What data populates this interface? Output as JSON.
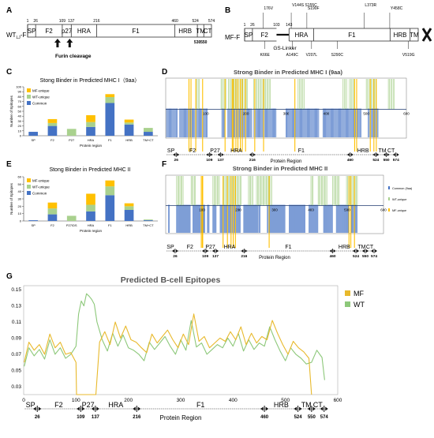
{
  "colors": {
    "common": "#4472C4",
    "wt": "#A9D18E",
    "mf": "#FFC000",
    "wt_line": "#8DC87A",
    "mf_line": "#E8B92C",
    "frame": "#333333"
  },
  "panel_a": {
    "letter": "A",
    "label_main": "WT",
    "label_sub": "LJ",
    "label_suffix": "-F",
    "positions": [
      {
        "text": "1",
        "at": 1
      },
      {
        "text": "26",
        "at": 26
      },
      {
        "text": "109",
        "at": 109
      },
      {
        "text": "137",
        "at": 137
      },
      {
        "text": "216",
        "at": 216
      },
      {
        "text": "460",
        "at": 460
      },
      {
        "text": "524",
        "at": 524
      },
      {
        "text": "574",
        "at": 574
      }
    ],
    "positions_below": [
      {
        "text": "530",
        "at": 530
      },
      {
        "text": "550",
        "at": 550
      }
    ],
    "domains": [
      {
        "name": "SP",
        "from": 1,
        "to": 26
      },
      {
        "name": "F2",
        "from": 26,
        "to": 109
      },
      {
        "name": "p27",
        "from": 109,
        "to": 137
      },
      {
        "name": "HRA",
        "from": 137,
        "to": 216
      },
      {
        "name": "F1",
        "from": 216,
        "to": 460
      },
      {
        "name": "HRB",
        "from": 460,
        "to": 524
      },
      {
        "name": "TM",
        "from": 530,
        "to": 550
      },
      {
        "name": "CT",
        "from": 550,
        "to": 574
      }
    ],
    "furin_label": "Furin cleavage"
  },
  "panel_b": {
    "letter": "B",
    "label": "MF-F",
    "positions": [
      {
        "text": "1",
        "at": 1
      },
      {
        "text": "26",
        "at": 26
      },
      {
        "text": "103",
        "at": 103
      },
      {
        "text": "143",
        "at": 143
      }
    ],
    "domains": [
      {
        "name": "SP",
        "from": 1,
        "to": 26
      },
      {
        "name": "F2",
        "from": 26,
        "to": 103
      },
      {
        "name": "HRA",
        "from": 143,
        "to": 222
      },
      {
        "name": "F1",
        "from": 222,
        "to": 466
      },
      {
        "name": "HRB",
        "from": 466,
        "to": 530
      },
      {
        "name": "TM",
        "from": 530,
        "to": 556
      }
    ],
    "linker_label": "GS-Linker",
    "mutations_above": [
      {
        "text": "176V",
        "at": 60
      },
      {
        "text": "V144S S155C",
        "at": 150
      },
      {
        "text": "S190F",
        "at": 200
      },
      {
        "text": "L373R",
        "at": 383
      },
      {
        "text": "Y458C",
        "at": 465
      }
    ],
    "mutations_below": [
      {
        "text": "K66E",
        "at": 66
      },
      {
        "text": "A149C",
        "at": 153
      },
      {
        "text": "V207L",
        "at": 215
      },
      {
        "text": "S290C",
        "at": 297
      },
      {
        "text": "V519G",
        "at": 525
      }
    ]
  },
  "panel_c": {
    "letter": "C",
    "title": "Stong Binder in Predicted MHC I（9aa）",
    "ylabel": "Number of Epitopes",
    "xlabel": "Protein region",
    "legend": [
      "MF-unique",
      "WT-unique",
      "Common"
    ]
  },
  "panel_e": {
    "letter": "E",
    "title": "Stong Binder in Predicted MHC II",
    "ylabel": "Number of Epitopes",
    "xlabel": "Protein region",
    "legend": [
      "MF-unique",
      "WT-unique",
      "Common"
    ]
  },
  "panel_d": {
    "letter": "D",
    "title": "Strong Binder in Predicted MHC I (9aa)",
    "xlabel": "Protein Region"
  },
  "panel_f": {
    "letter": "F",
    "title": "Strong Binder in Predicted MHC II",
    "xlabel": "Protein Region",
    "legend": [
      "Common (9aa)",
      "WT-unique",
      "MF-unique"
    ]
  },
  "panel_g": {
    "letter": "G",
    "title": "Predicted B-cell Epitopes",
    "xlabel": "Protein Region",
    "legend": [
      "MF",
      "WT"
    ]
  },
  "domain_track": {
    "names": [
      {
        "text": "SP",
        "at": 13
      },
      {
        "text": "F2",
        "at": 67
      },
      {
        "text": "P27",
        "at": 123
      },
      {
        "text": "HRA",
        "at": 176
      },
      {
        "text": "F1",
        "at": 338
      },
      {
        "text": "HRB",
        "at": 492
      },
      {
        "text": "TM",
        "at": 540
      },
      {
        "text": "CT",
        "at": 562
      }
    ],
    "ticks": [
      {
        "text": "26",
        "at": 26
      },
      {
        "text": "109",
        "at": 109
      },
      {
        "text": "137",
        "at": 137
      },
      {
        "text": "216",
        "at": 216
      },
      {
        "text": "460",
        "at": 460
      },
      {
        "text": "524",
        "at": 524
      },
      {
        "text": "550",
        "at": 550
      },
      {
        "text": "574",
        "at": 574
      }
    ]
  },
  "chart_data": [
    {
      "id": "C",
      "type": "bar",
      "stacked": true,
      "title": "Stong Binder in Predicted MHC I（9aa）",
      "xlabel": "Protein region",
      "ylabel": "Number of Epitopes",
      "ylim": [
        0,
        100
      ],
      "yticks": [
        0,
        10,
        20,
        30,
        40,
        50,
        60,
        70,
        80,
        90,
        100
      ],
      "categories": [
        "SP",
        "F2",
        "P27",
        "HRA",
        "F1",
        "HRB",
        "TM+CT"
      ],
      "series": [
        {
          "name": "Common",
          "values": [
            8,
            20,
            0,
            18,
            67,
            23,
            8
          ]
        },
        {
          "name": "WT-unique",
          "values": [
            0,
            6,
            14,
            10,
            12,
            4,
            8
          ]
        },
        {
          "name": "MF-unique",
          "values": [
            0,
            8,
            0,
            14,
            6,
            6,
            0
          ]
        }
      ]
    },
    {
      "id": "E",
      "type": "bar",
      "stacked": true,
      "title": "Stong Binder in Predicted MHC II",
      "xlabel": "Protein region",
      "ylabel": "Number of Epitopes",
      "ylim": [
        0,
        60
      ],
      "yticks": [
        0,
        10,
        20,
        30,
        40,
        50,
        60
      ],
      "categories": [
        "SP",
        "F2",
        "P27/DS",
        "HRA",
        "F1",
        "HRB",
        "TM+CT"
      ],
      "series": [
        {
          "name": "Common",
          "values": [
            1,
            9,
            0,
            13,
            35,
            15,
            1
          ]
        },
        {
          "name": "WT-unique",
          "values": [
            0,
            8,
            7,
            9,
            12,
            5,
            1
          ]
        },
        {
          "name": "MF-unique",
          "values": [
            0,
            8,
            0,
            15,
            8,
            4,
            0
          ]
        }
      ]
    },
    {
      "id": "D",
      "type": "heatmap",
      "title": "Strong Binder in Predicted MHC I (9aa)",
      "xlabel": "Protein Region",
      "xlim": [
        0,
        600
      ],
      "xticks": [
        100,
        200,
        300,
        400,
        500,
        600
      ],
      "common_ranges": [
        [
          2,
          30
        ],
        [
          35,
          105
        ],
        [
          140,
          148
        ],
        [
          155,
          215
        ],
        [
          220,
          275
        ],
        [
          300,
          382
        ],
        [
          392,
          488
        ],
        [
          505,
          530
        ]
      ],
      "wt_ranges": [
        [
          75,
          85
        ],
        [
          138,
          150
        ],
        [
          156,
          205
        ],
        [
          219,
          262
        ],
        [
          330,
          345
        ],
        [
          442,
          452
        ],
        [
          458,
          470
        ],
        [
          500,
          526
        ],
        [
          555,
          570
        ]
      ],
      "mf_positions": [
        58,
        63,
        75,
        92,
        148,
        166,
        169,
        175,
        180,
        186,
        191,
        199,
        222,
        244,
        322,
        471,
        476,
        510,
        519,
        525
      ]
    },
    {
      "id": "F",
      "type": "heatmap",
      "title": "Strong Binder in Predicted MHC II",
      "xlabel": "Protein Region",
      "xlim": [
        0,
        600
      ],
      "xticks": [
        100,
        200,
        300,
        400,
        500,
        600
      ],
      "common_ranges": [
        [
          8,
          12
        ],
        [
          30,
          68
        ],
        [
          75,
          110
        ],
        [
          115,
          120
        ],
        [
          130,
          140
        ],
        [
          150,
          205
        ],
        [
          215,
          255
        ],
        [
          258,
          262
        ],
        [
          280,
          330
        ],
        [
          340,
          386
        ],
        [
          395,
          420
        ],
        [
          435,
          460
        ],
        [
          470,
          505
        ],
        [
          510,
          528
        ]
      ],
      "wt_ranges": [
        [
          30,
          48
        ],
        [
          70,
          82
        ],
        [
          130,
          150
        ],
        [
          160,
          210
        ],
        [
          228,
          240
        ],
        [
          250,
          292
        ],
        [
          400,
          408
        ],
        [
          420,
          445
        ],
        [
          460,
          478
        ],
        [
          498,
          530
        ]
      ],
      "mf_positions": [
        98,
        101,
        102,
        158,
        170,
        180,
        186,
        192,
        285,
        505,
        510,
        520
      ]
    },
    {
      "id": "G",
      "type": "line",
      "title": "Predicted B-cell Epitopes",
      "xlabel": "Protein Region",
      "xlim": [
        0,
        600
      ],
      "ylim": [
        0.02,
        0.155
      ],
      "yticks": [
        0.03,
        0.05,
        0.07,
        0.09,
        0.11,
        0.13,
        0.15
      ],
      "xticks": [
        0,
        100,
        200,
        300,
        400,
        500,
        600
      ],
      "series": [
        {
          "name": "MF",
          "x": [
            1,
            10,
            20,
            30,
            40,
            50,
            60,
            70,
            80,
            90,
            100,
            101,
            138,
            145,
            155,
            165,
            175,
            185,
            195,
            205,
            215,
            225,
            235,
            245,
            255,
            265,
            275,
            285,
            295,
            305,
            315,
            325,
            335,
            345,
            355,
            365,
            375,
            385,
            395,
            405,
            415,
            425,
            435,
            445,
            455,
            465,
            475,
            485,
            495,
            505,
            515,
            525,
            535,
            545,
            550
          ],
          "y": [
            0.06,
            0.085,
            0.075,
            0.082,
            0.07,
            0.095,
            0.078,
            0.085,
            0.07,
            0.072,
            0.06,
            0.02,
            0.02,
            0.085,
            0.098,
            0.082,
            0.11,
            0.09,
            0.105,
            0.088,
            0.085,
            0.078,
            0.072,
            0.095,
            0.084,
            0.092,
            0.1,
            0.088,
            0.078,
            0.095,
            0.082,
            0.12,
            0.086,
            0.092,
            0.078,
            0.084,
            0.09,
            0.086,
            0.098,
            0.088,
            0.104,
            0.082,
            0.096,
            0.084,
            0.092,
            0.088,
            0.112,
            0.096,
            0.082,
            0.07,
            0.086,
            0.078,
            0.073,
            0.065,
            0.02
          ]
        },
        {
          "name": "WT",
          "x": [
            1,
            10,
            20,
            30,
            40,
            50,
            60,
            70,
            80,
            90,
            100,
            105,
            110,
            115,
            120,
            125,
            130,
            135,
            140,
            150,
            160,
            170,
            180,
            190,
            200,
            210,
            220,
            230,
            240,
            250,
            260,
            270,
            280,
            290,
            300,
            310,
            320,
            330,
            340,
            350,
            360,
            370,
            380,
            390,
            400,
            410,
            420,
            430,
            440,
            450,
            460,
            470,
            480,
            490,
            500,
            510,
            520,
            530,
            540,
            550,
            560,
            570,
            575
          ],
          "y": [
            0.055,
            0.078,
            0.068,
            0.076,
            0.064,
            0.088,
            0.07,
            0.078,
            0.065,
            0.07,
            0.08,
            0.12,
            0.136,
            0.13,
            0.145,
            0.142,
            0.138,
            0.132,
            0.11,
            0.088,
            0.074,
            0.096,
            0.08,
            0.094,
            0.078,
            0.075,
            0.07,
            0.062,
            0.085,
            0.076,
            0.084,
            0.092,
            0.08,
            0.07,
            0.088,
            0.075,
            0.112,
            0.079,
            0.084,
            0.07,
            0.076,
            0.082,
            0.078,
            0.09,
            0.08,
            0.096,
            0.074,
            0.088,
            0.076,
            0.084,
            0.08,
            0.104,
            0.088,
            0.074,
            0.062,
            0.078,
            0.07,
            0.065,
            0.058,
            0.06,
            0.075,
            0.066,
            0.038
          ]
        }
      ]
    }
  ]
}
